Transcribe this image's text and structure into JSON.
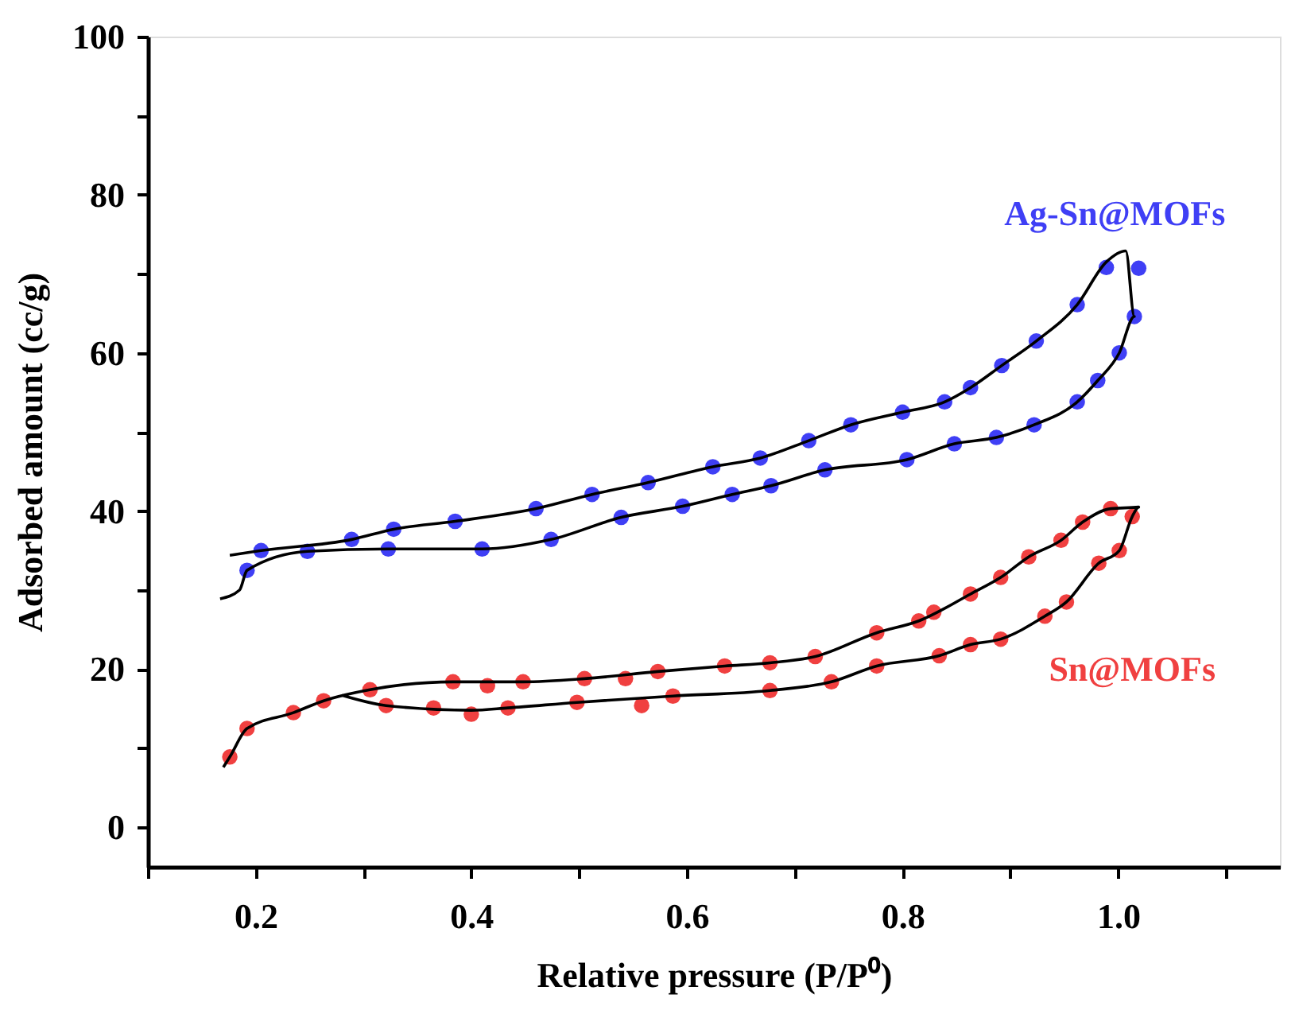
{
  "chart_data": {
    "type": "scatter",
    "xlabel": "Relative pressure (P/P⁰)",
    "ylabel": "Adsorbed amount (cc/g)",
    "xlim": [
      0.1,
      1.15
    ],
    "ylim": [
      -5,
      100
    ],
    "xticks": [
      {
        "value": 0.1,
        "label": null
      },
      0.2,
      {
        "value": 0.3,
        "label": null
      },
      0.4,
      {
        "value": 0.5,
        "label": null
      },
      0.6,
      {
        "value": 0.7,
        "label": null
      },
      0.8,
      {
        "value": 0.9,
        "label": null
      },
      {
        "value": 1.0,
        "label": "1.0"
      },
      {
        "value": 1.1,
        "label": null
      }
    ],
    "yticks": [
      0,
      {
        "value": 10,
        "label": null
      },
      20,
      {
        "value": 30,
        "label": null
      },
      40,
      {
        "value": 50,
        "label": null
      },
      60,
      {
        "value": 70,
        "label": null
      },
      80,
      {
        "value": 90,
        "label": null
      },
      100
    ],
    "grid": false,
    "marker": "circle",
    "series": [
      {
        "name": "Ag-Sn@MOFs",
        "color": "#3f3ff5",
        "x": [
          0.205,
          0.289,
          0.328,
          0.385,
          0.46,
          0.512,
          0.564,
          0.624,
          0.668,
          0.713,
          0.752,
          0.8,
          0.839,
          0.863,
          0.892,
          0.924,
          0.962,
          0.989,
          1.019,
          0.192,
          0.248,
          0.323,
          0.41,
          0.474,
          0.539,
          0.596,
          0.642,
          0.678,
          0.728,
          0.804,
          0.848,
          0.887,
          0.922,
          0.962,
          0.981,
          1.001,
          1.015
        ],
        "values": [
          35.0,
          36.4,
          37.7,
          38.7,
          40.3,
          42.1,
          43.6,
          45.6,
          46.7,
          48.9,
          50.9,
          52.5,
          53.8,
          55.6,
          58.4,
          61.5,
          66.1,
          70.8,
          70.7,
          32.5,
          34.9,
          35.2,
          35.2,
          36.4,
          39.2,
          40.6,
          42.1,
          43.2,
          45.2,
          46.5,
          48.5,
          49.3,
          50.9,
          53.8,
          56.5,
          60.0,
          64.6
        ]
      },
      {
        "name": "Sn@MOFs",
        "color": "#f04040",
        "x": [
          0.176,
          0.192,
          0.235,
          0.263,
          0.306,
          0.383,
          0.415,
          0.448,
          0.505,
          0.543,
          0.573,
          0.635,
          0.677,
          0.719,
          0.776,
          0.815,
          0.829,
          0.863,
          0.891,
          0.917,
          0.947,
          0.967,
          0.993,
          1.013,
          1.001,
          0.982,
          0.952,
          0.932,
          0.891,
          0.863,
          0.834,
          0.776,
          0.734,
          0.677,
          0.587,
          0.558,
          0.498,
          0.434,
          0.4,
          0.365,
          0.321
        ],
        "values": [
          8.9,
          12.5,
          14.5,
          16.0,
          17.4,
          18.4,
          17.9,
          18.4,
          18.8,
          18.8,
          19.7,
          20.4,
          20.8,
          21.6,
          24.6,
          26.1,
          27.2,
          29.5,
          31.6,
          34.2,
          36.3,
          38.6,
          40.3,
          39.3,
          35.0,
          33.4,
          28.5,
          26.7,
          23.8,
          23.1,
          21.7,
          20.4,
          18.4,
          17.3,
          16.6,
          15.4,
          15.8,
          15.1,
          14.3,
          15.1,
          15.4
        ]
      },
      {
        "color": "#000000",
        "type": "line",
        "marker": "none",
        "x": [
          0.167,
          0.185,
          0.192,
          0.248,
          0.323,
          0.41,
          0.474,
          0.539,
          0.596,
          0.642,
          0.678,
          0.728,
          0.804,
          0.848,
          0.887,
          0.922,
          0.962,
          0.981,
          1.001,
          1.015,
          1.007,
          0.989,
          0.962,
          0.924,
          0.892,
          0.863,
          0.839,
          0.8,
          0.752,
          0.713,
          0.668,
          0.624,
          0.564,
          0.512,
          0.46,
          0.385,
          0.328,
          0.289,
          0.205,
          0.176
        ],
        "values": [
          28.9,
          30.0,
          32.5,
          34.9,
          35.2,
          35.2,
          36.4,
          39.2,
          40.6,
          42.1,
          43.2,
          45.2,
          46.5,
          48.5,
          49.3,
          50.9,
          53.8,
          56.5,
          60.0,
          64.6,
          72.9,
          71.5,
          66.1,
          61.5,
          58.4,
          55.6,
          53.8,
          52.5,
          50.9,
          48.9,
          46.7,
          45.6,
          43.6,
          42.1,
          40.3,
          38.7,
          37.7,
          36.4,
          35.0,
          34.4
        ]
      },
      {
        "color": "#000000",
        "type": "line",
        "marker": "none",
        "x": [
          0.17,
          0.176,
          0.192,
          0.235,
          0.263,
          0.306,
          0.383,
          0.448,
          0.505,
          0.573,
          0.635,
          0.677,
          0.719,
          0.776,
          0.815,
          0.863,
          0.891,
          0.917,
          0.947,
          0.967,
          0.993,
          1.019,
          1.013,
          1.001,
          0.982,
          0.952,
          0.932,
          0.891,
          0.863,
          0.834,
          0.776,
          0.734,
          0.677,
          0.587,
          0.498,
          0.434,
          0.4,
          0.321,
          0.28
        ],
        "values": [
          7.6,
          8.9,
          12.5,
          14.5,
          16.0,
          17.4,
          18.4,
          18.4,
          18.8,
          19.7,
          20.4,
          20.8,
          21.6,
          24.6,
          26.1,
          29.5,
          31.6,
          34.2,
          36.3,
          38.6,
          40.3,
          40.5,
          39.3,
          35.0,
          33.4,
          28.5,
          26.7,
          23.8,
          23.1,
          21.7,
          20.4,
          18.4,
          17.3,
          16.6,
          15.8,
          15.1,
          14.8,
          15.4,
          16.7
        ]
      }
    ]
  }
}
